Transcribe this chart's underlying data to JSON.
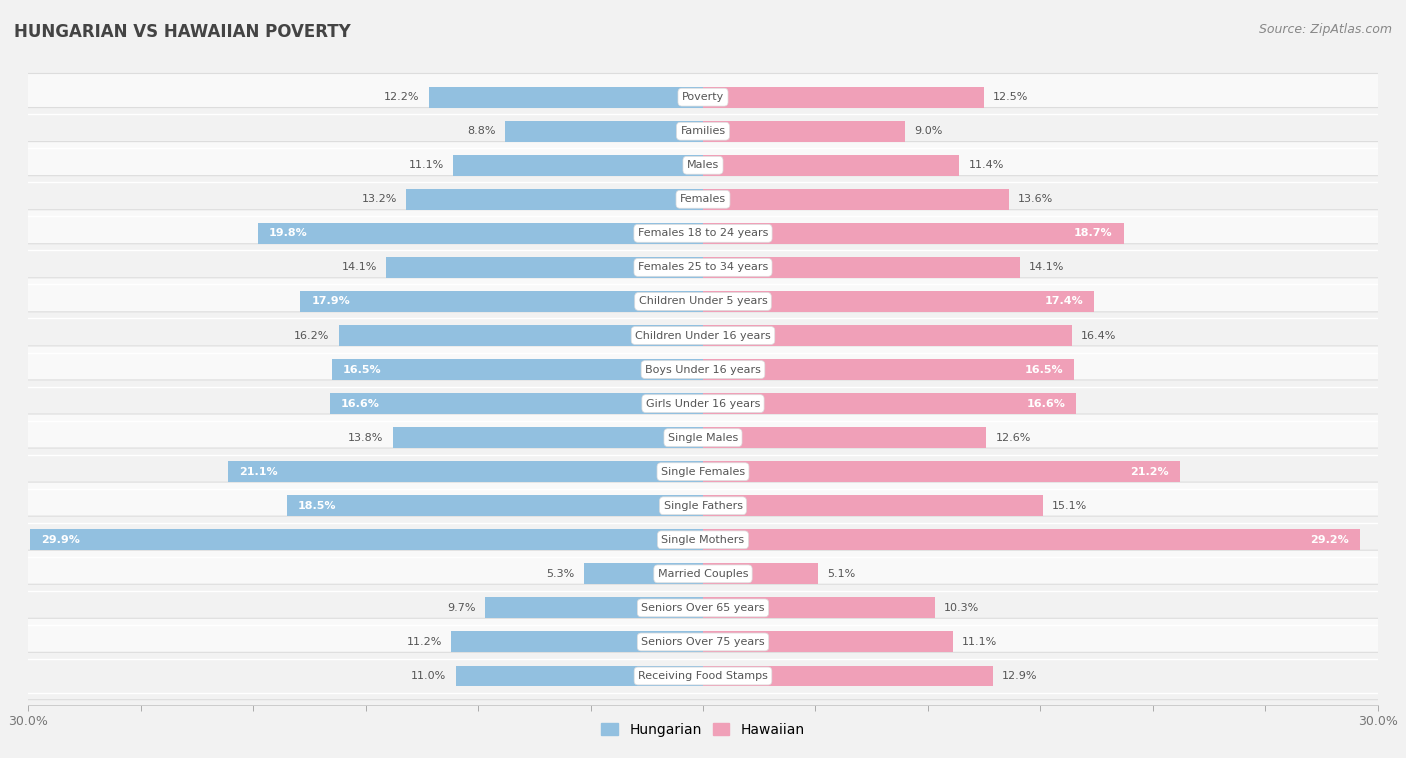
{
  "title": "HUNGARIAN VS HAWAIIAN POVERTY",
  "source": "Source: ZipAtlas.com",
  "categories": [
    "Poverty",
    "Families",
    "Males",
    "Females",
    "Females 18 to 24 years",
    "Females 25 to 34 years",
    "Children Under 5 years",
    "Children Under 16 years",
    "Boys Under 16 years",
    "Girls Under 16 years",
    "Single Males",
    "Single Females",
    "Single Fathers",
    "Single Mothers",
    "Married Couples",
    "Seniors Over 65 years",
    "Seniors Over 75 years",
    "Receiving Food Stamps"
  ],
  "hungarian": [
    12.2,
    8.8,
    11.1,
    13.2,
    19.8,
    14.1,
    17.9,
    16.2,
    16.5,
    16.6,
    13.8,
    21.1,
    18.5,
    29.9,
    5.3,
    9.7,
    11.2,
    11.0
  ],
  "hawaiian": [
    12.5,
    9.0,
    11.4,
    13.6,
    18.7,
    14.1,
    17.4,
    16.4,
    16.5,
    16.6,
    12.6,
    21.2,
    15.1,
    29.2,
    5.1,
    10.3,
    11.1,
    12.9
  ],
  "hungarian_color": "#92c0e0",
  "hawaiian_color": "#f0a0b8",
  "bg_color": "#f2f2f2",
  "row_bg_light": "#f9f9f9",
  "row_bg_dark": "#f2f2f2",
  "row_border": "#dddddd",
  "max_val": 30.0,
  "label_threshold": 16.5,
  "title_color": "#444444",
  "source_color": "#888888",
  "label_color_outside": "#555555",
  "label_color_inside": "#ffffff",
  "tick_label_color": "#777777",
  "cat_label_color": "#555555"
}
